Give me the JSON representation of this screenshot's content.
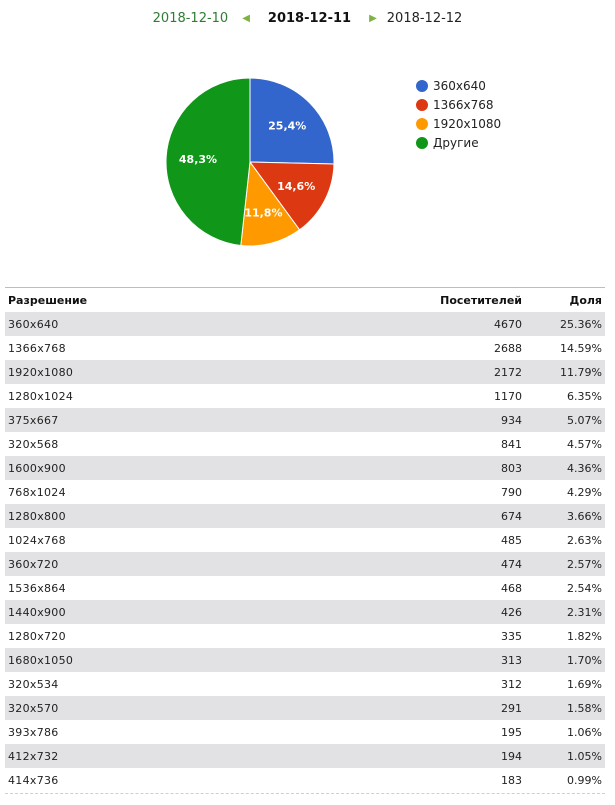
{
  "nav": {
    "prev_date": "2018-12-10",
    "current_date": "2018-12-11",
    "next_date": "2018-12-12"
  },
  "chart_data": {
    "type": "pie",
    "slices": [
      {
        "label": "360x640",
        "value": 25.4,
        "display": "25,4%",
        "color": "#3366cc"
      },
      {
        "label": "1366x768",
        "value": 14.6,
        "display": "14,6%",
        "color": "#dc3912"
      },
      {
        "label": "1920x1080",
        "value": 11.8,
        "display": "11,8%",
        "color": "#ff9900"
      },
      {
        "label": "Другие",
        "value": 48.3,
        "display": "48,3%",
        "color": "#109618"
      }
    ],
    "legend_position": "right"
  },
  "table": {
    "headers": {
      "resolution": "Разрешение",
      "visitors": "Посетителей",
      "share": "Доля"
    },
    "rows": [
      {
        "resolution": "360x640",
        "visitors": "4670",
        "share": "25.36%"
      },
      {
        "resolution": "1366x768",
        "visitors": "2688",
        "share": "14.59%"
      },
      {
        "resolution": "1920x1080",
        "visitors": "2172",
        "share": "11.79%"
      },
      {
        "resolution": "1280x1024",
        "visitors": "1170",
        "share": "6.35%"
      },
      {
        "resolution": "375x667",
        "visitors": "934",
        "share": "5.07%"
      },
      {
        "resolution": "320x568",
        "visitors": "841",
        "share": "4.57%"
      },
      {
        "resolution": "1600x900",
        "visitors": "803",
        "share": "4.36%"
      },
      {
        "resolution": "768x1024",
        "visitors": "790",
        "share": "4.29%"
      },
      {
        "resolution": "1280x800",
        "visitors": "674",
        "share": "3.66%"
      },
      {
        "resolution": "1024x768",
        "visitors": "485",
        "share": "2.63%"
      },
      {
        "resolution": "360x720",
        "visitors": "474",
        "share": "2.57%"
      },
      {
        "resolution": "1536x864",
        "visitors": "468",
        "share": "2.54%"
      },
      {
        "resolution": "1440x900",
        "visitors": "426",
        "share": "2.31%"
      },
      {
        "resolution": "1280x720",
        "visitors": "335",
        "share": "1.82%"
      },
      {
        "resolution": "1680x1050",
        "visitors": "313",
        "share": "1.70%"
      },
      {
        "resolution": "320x534",
        "visitors": "312",
        "share": "1.69%"
      },
      {
        "resolution": "320x570",
        "visitors": "291",
        "share": "1.58%"
      },
      {
        "resolution": "393x786",
        "visitors": "195",
        "share": "1.06%"
      },
      {
        "resolution": "412x732",
        "visitors": "194",
        "share": "1.05%"
      },
      {
        "resolution": "414x736",
        "visitors": "183",
        "share": "0.99%"
      }
    ]
  }
}
